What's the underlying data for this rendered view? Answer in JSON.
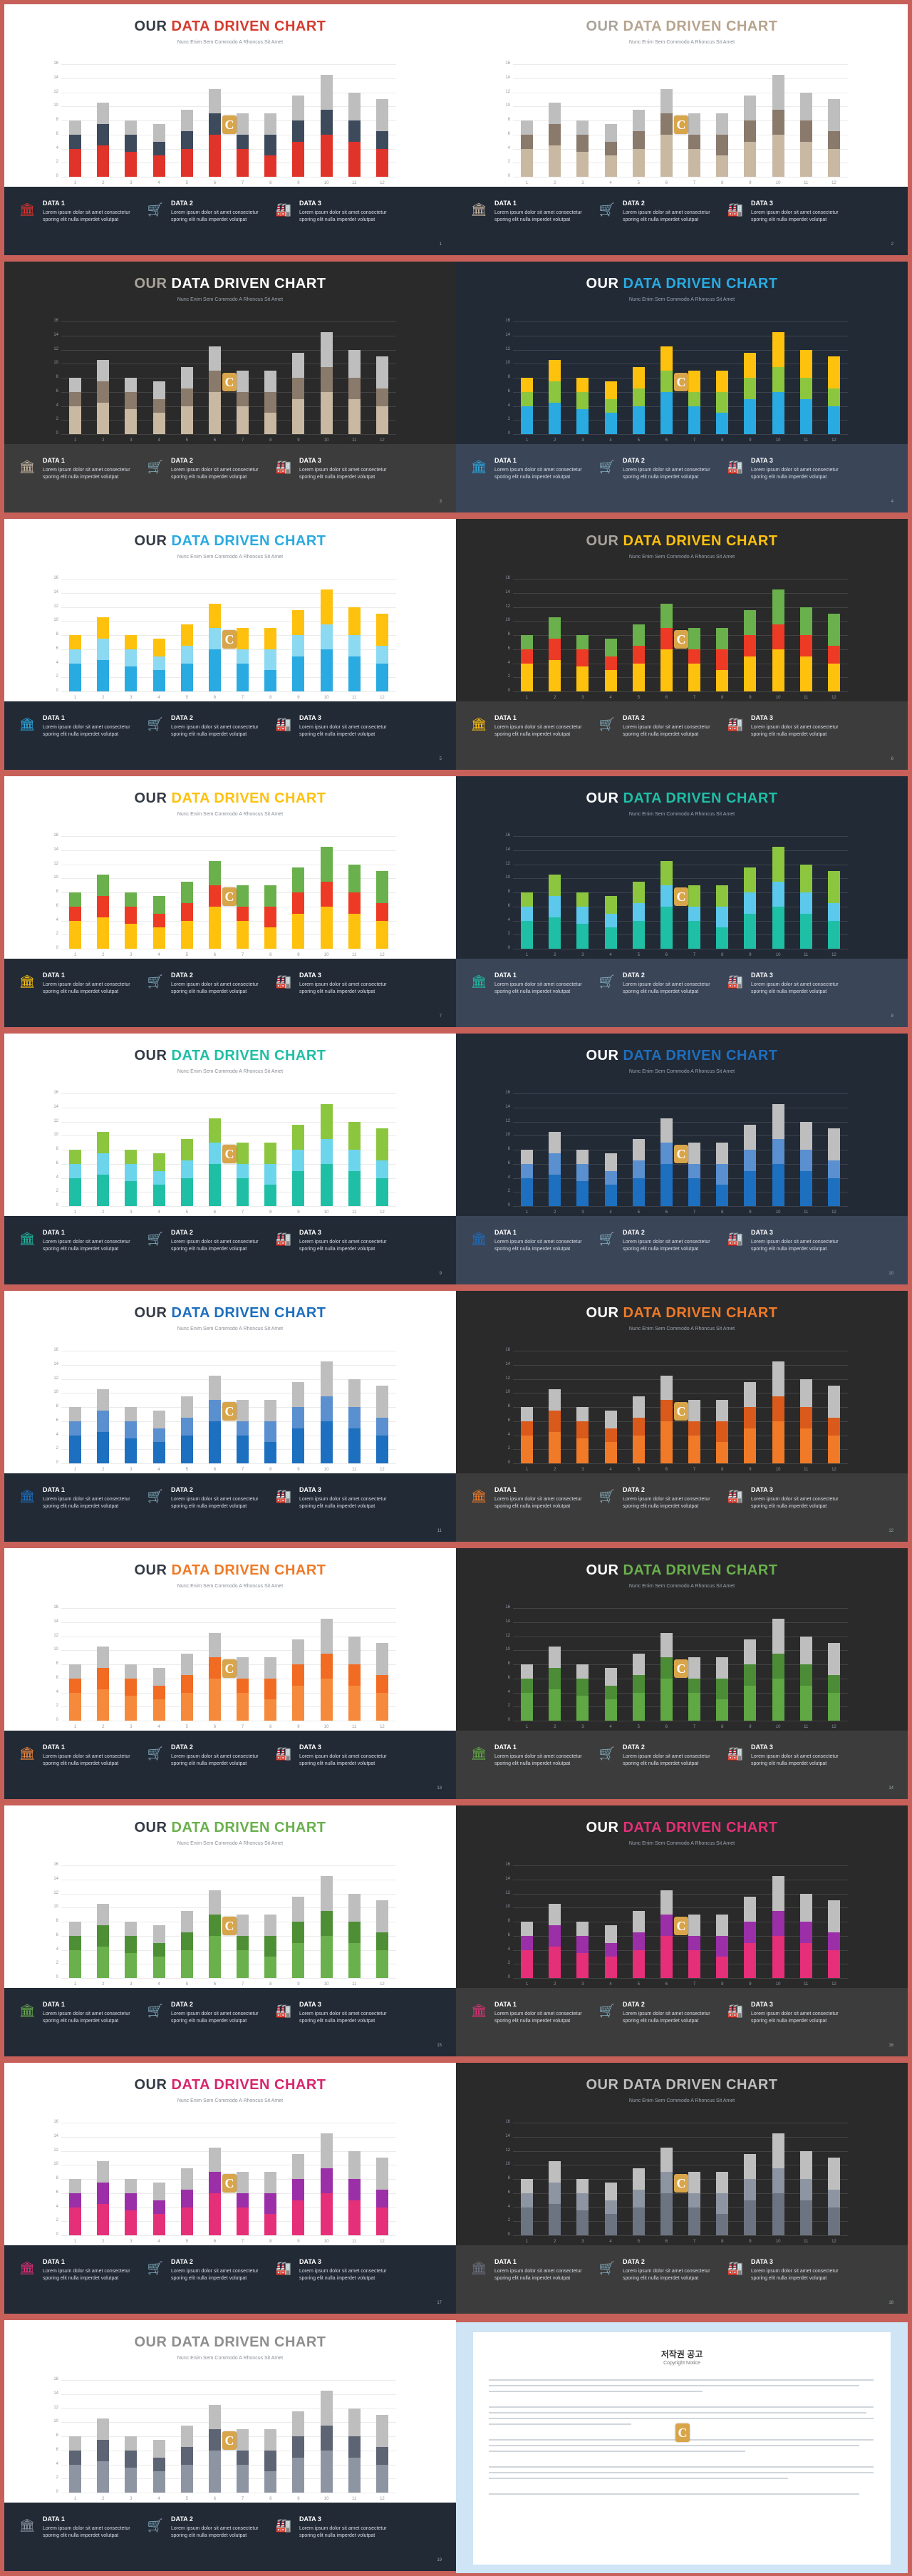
{
  "slide_title_prefix": "OUR",
  "slide_title_accent": "DATA DRIVEN CHART",
  "slide_subtitle": "Nunc Enim Sem Commodo A Rhoncus Sit Amet",
  "logo_letter": "C",
  "data_items": [
    {
      "label": "DATA 1",
      "text": "Lorem ipsum dolor sit amet consectetur sporing elit nulla imperdet volutpat",
      "icon": "bank-icon"
    },
    {
      "label": "DATA 2",
      "text": "Lorem ipsum dolor sit amet consectetur sporing elit nulla imperdet volutpat",
      "icon": "cart-icon"
    },
    {
      "label": "DATA 3",
      "text": "Lorem ipsum dolor sit amet consectetur sporing elit nulla imperdet volutpat",
      "icon": "factory-icon"
    }
  ],
  "chart_data": {
    "type": "bar",
    "stacked": true,
    "categories": [
      "1",
      "2",
      "3",
      "4",
      "5",
      "6",
      "7",
      "8",
      "9",
      "10",
      "11",
      "12"
    ],
    "yticks": [
      0,
      2,
      4,
      6,
      8,
      10,
      12,
      14,
      16
    ],
    "ylim": [
      0,
      16
    ],
    "series": [
      {
        "values": [
          4,
          4.5,
          3.5,
          3,
          4,
          6,
          4,
          3,
          5,
          6,
          5,
          4
        ]
      },
      {
        "values": [
          2,
          3,
          2.5,
          2,
          2.5,
          3,
          2,
          3,
          3,
          3.5,
          3,
          2.5
        ]
      },
      {
        "values": [
          2,
          3,
          2,
          2.5,
          3,
          3.5,
          3,
          3,
          3.5,
          5,
          4,
          4.5
        ]
      }
    ]
  },
  "slides": [
    {
      "page": "1",
      "bg": "#ffffff",
      "bottom": "#222a36",
      "prefix": "#333a44",
      "accent": "#d63b2e",
      "colors": [
        "#e0332a",
        "#3d4a5c",
        "#bebebe"
      ]
    },
    {
      "page": "2",
      "bg": "#ffffff",
      "bottom": "#222a36",
      "prefix": "#a9a49b",
      "accent": "#b8a48e",
      "colors": [
        "#c9b8a2",
        "#8a7a6c",
        "#bebebe"
      ]
    },
    {
      "page": "3",
      "bg": "#2a2a2a",
      "bottom": "#3c3c3c",
      "prefix": "#a9a49b",
      "accent": "#ffffff",
      "colors": [
        "#c9b8a2",
        "#8a7a6c",
        "#bebebe"
      ]
    },
    {
      "page": "4",
      "bg": "#222a36",
      "bottom": "#3a4558",
      "prefix": "#ffffff",
      "accent": "#29aae1",
      "colors": [
        "#29aae1",
        "#8cc63f",
        "#fec10e"
      ]
    },
    {
      "page": "5",
      "bg": "#ffffff",
      "bottom": "#222a36",
      "prefix": "#333a44",
      "accent": "#29aae1",
      "colors": [
        "#29aae1",
        "#8cd9f2",
        "#fec10e"
      ]
    },
    {
      "page": "6",
      "bg": "#2a2a2a",
      "bottom": "#3c3c3c",
      "prefix": "#a9a49b",
      "accent": "#fec10e",
      "colors": [
        "#fec10e",
        "#ec3a24",
        "#6ab04c"
      ]
    },
    {
      "page": "7",
      "bg": "#ffffff",
      "bottom": "#222a36",
      "prefix": "#333a44",
      "accent": "#fec10e",
      "colors": [
        "#fec10e",
        "#ec3a24",
        "#6ab04c"
      ]
    },
    {
      "page": "8",
      "bg": "#222a36",
      "bottom": "#3a4558",
      "prefix": "#ffffff",
      "accent": "#1fbfa5",
      "colors": [
        "#1fbfa5",
        "#5cc9ec",
        "#8cc63f"
      ]
    },
    {
      "page": "9",
      "bg": "#ffffff",
      "bottom": "#222a36",
      "prefix": "#333a44",
      "accent": "#1fbfa5",
      "colors": [
        "#1fbfa5",
        "#6cd5ec",
        "#8cc63f"
      ]
    },
    {
      "page": "10",
      "bg": "#222a36",
      "bottom": "#3a4558",
      "prefix": "#ffffff",
      "accent": "#1d6fbf",
      "colors": [
        "#1d6fbf",
        "#5a8fd0",
        "#bebebe"
      ]
    },
    {
      "page": "11",
      "bg": "#ffffff",
      "bottom": "#222a36",
      "prefix": "#333a44",
      "accent": "#1d6fbf",
      "colors": [
        "#1d6fbf",
        "#5a8fd0",
        "#bebebe"
      ]
    },
    {
      "page": "12",
      "bg": "#2a2a2a",
      "bottom": "#3c3c3c",
      "prefix": "#ffffff",
      "accent": "#f07a27",
      "colors": [
        "#f07a27",
        "#d95a1a",
        "#bebebe"
      ]
    },
    {
      "page": "13",
      "bg": "#ffffff",
      "bottom": "#222a36",
      "prefix": "#333a44",
      "accent": "#f07a27",
      "colors": [
        "#f58a3c",
        "#f26b22",
        "#bebebe"
      ]
    },
    {
      "page": "14",
      "bg": "#2a2a2a",
      "bottom": "#3c3c3c",
      "prefix": "#ffffff",
      "accent": "#6ab04c",
      "colors": [
        "#5fa843",
        "#4c8c36",
        "#bebebe"
      ]
    },
    {
      "page": "15",
      "bg": "#ffffff",
      "bottom": "#222a36",
      "prefix": "#333a44",
      "accent": "#6ab04c",
      "colors": [
        "#6ab04c",
        "#4e8f36",
        "#bebebe"
      ]
    },
    {
      "page": "16",
      "bg": "#2a2a2a",
      "bottom": "#3c3c3c",
      "prefix": "#ffffff",
      "accent": "#e52f78",
      "colors": [
        "#e52f78",
        "#9b2fa8",
        "#bebebe"
      ]
    },
    {
      "page": "17",
      "bg": "#ffffff",
      "bottom": "#222a36",
      "prefix": "#333a44",
      "accent": "#d8266e",
      "colors": [
        "#e52f78",
        "#9b2fa8",
        "#bebebe"
      ]
    },
    {
      "page": "18",
      "bg": "#2a2a2a",
      "bottom": "#3c3c3c",
      "prefix": "#bdbdbd",
      "accent": "#bdbdbd",
      "colors": [
        "#6c7381",
        "#8e95a2",
        "#bebebe"
      ]
    },
    {
      "page": "19",
      "bg": "#ffffff",
      "bottom": "#222a36",
      "prefix": "#8e8e8e",
      "accent": "#8e8e8e",
      "colors": [
        "#8e95a2",
        "#5d6473",
        "#bebebe"
      ]
    }
  ],
  "notice": {
    "title": "저작권 공고",
    "subtitle": "Copyright Notice"
  }
}
